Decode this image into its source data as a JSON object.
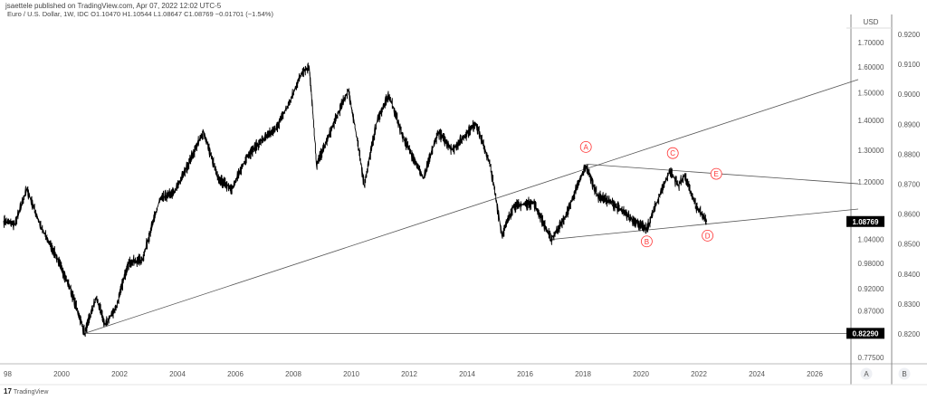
{
  "header": {
    "publisher": "jsaettele published on TradingView.com, Apr 07, 2022 12:02 UTC-5",
    "legend": "Euro / U.S. Dollar, 1W, IDC  O1.10470  H1.10544  L1.08647  C1.08769  −0.01701 (−1.54%)"
  },
  "footer": {
    "logo_text": "TradingView",
    "logo_mark": "17"
  },
  "chart_data": {
    "type": "line",
    "title": "Euro / U.S. Dollar, 1W, IDC",
    "log_scale": true,
    "ylim": [
      0.76,
      1.76
    ],
    "xlim": [
      1998,
      2027.5
    ],
    "x_ticks": [
      "98",
      "2000",
      "2002",
      "2004",
      "2006",
      "2008",
      "2010",
      "2012",
      "2014",
      "2016",
      "2018",
      "2020",
      "2022",
      "2024",
      "2026"
    ],
    "y_ticks_A": [
      "1.70000",
      "1.60000",
      "1.50000",
      "1.40000",
      "1.30000",
      "1.20000",
      "1.04000",
      "0.98000",
      "0.92000",
      "0.87000",
      "0.77500"
    ],
    "y_ticks_B": [
      "0.9200",
      "0.9100",
      "0.9000",
      "0.8900",
      "0.8800",
      "0.8700",
      "0.8600",
      "0.8500",
      "0.8400",
      "0.8300",
      "0.8200"
    ],
    "axis_currency": "USD",
    "scale_buttons": [
      "A",
      "B"
    ],
    "price_labels": [
      {
        "text": "1.08769",
        "value": 1.08769
      },
      {
        "text": "0.82290",
        "value": 0.8229
      }
    ],
    "series": [
      {
        "color": "#000000",
        "x": [
          1998.0,
          1998.4,
          1998.8,
          1999.3,
          1999.8,
          2000.3,
          2000.8,
          2001.2,
          2001.5,
          2001.9,
          2002.3,
          2002.8,
          2003.4,
          2003.9,
          2004.3,
          2004.9,
          2005.4,
          2005.9,
          2006.4,
          2006.9,
          2007.4,
          2007.9,
          2008.3,
          2008.55,
          2008.8,
          2009.2,
          2009.9,
          2010.45,
          2010.9,
          2011.3,
          2011.8,
          2012.5,
          2013.0,
          2013.5,
          2014.3,
          2014.8,
          2015.2,
          2015.6,
          2016.3,
          2016.9,
          2017.4,
          2018.1,
          2018.5,
          2019.0,
          2019.6,
          2020.2,
          2020.5,
          2021.0,
          2021.3,
          2021.5,
          2021.9,
          2022.27
        ],
        "values": [
          1.09,
          1.08,
          1.18,
          1.07,
          1.0,
          0.92,
          0.8229,
          0.9,
          0.84,
          0.88,
          0.98,
          0.99,
          1.15,
          1.17,
          1.24,
          1.36,
          1.21,
          1.18,
          1.28,
          1.33,
          1.37,
          1.47,
          1.58,
          1.6,
          1.25,
          1.34,
          1.51,
          1.19,
          1.4,
          1.49,
          1.34,
          1.21,
          1.36,
          1.3,
          1.39,
          1.25,
          1.05,
          1.13,
          1.14,
          1.04,
          1.1,
          1.25,
          1.16,
          1.14,
          1.1,
          1.065,
          1.13,
          1.235,
          1.19,
          1.22,
          1.13,
          1.087
        ]
      }
    ],
    "trendlines": [
      {
        "from": [
          2000.8,
          0.8229
        ],
        "to": [
          2027.5,
          1.55
        ]
      },
      {
        "from": [
          2000.8,
          0.8229
        ],
        "to": [
          2027.5,
          0.8229
        ]
      },
      {
        "from": [
          2018.1,
          1.255
        ],
        "to": [
          2027.5,
          1.195
        ]
      },
      {
        "from": [
          2016.9,
          1.04
        ],
        "to": [
          2027.5,
          1.122
        ]
      }
    ],
    "annotations": [
      {
        "text": "A",
        "x": 2018.1,
        "y": 1.31
      },
      {
        "text": "B",
        "x": 2020.2,
        "y": 1.035
      },
      {
        "text": "C",
        "x": 2021.1,
        "y": 1.29
      },
      {
        "text": "D",
        "x": 2022.3,
        "y": 1.05
      },
      {
        "text": "E",
        "x": 2022.6,
        "y": 1.225
      }
    ],
    "annotation_color": "#ff3030",
    "grid": false
  }
}
